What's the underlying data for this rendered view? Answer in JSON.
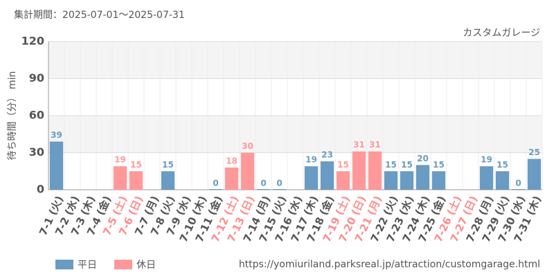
{
  "chart_data": {
    "type": "bar",
    "title": "カスタムガレージ",
    "subtitle": "集計期間：2025-07-01～2025-07-31",
    "y_label": "待ち時間（分） min",
    "source": "https://yomiuriland.parksreal.jp/attraction/customgarage.html",
    "categories": [
      "7-1 (火)",
      "7-2 (水)",
      "7-3 (木)",
      "7-4 (金)",
      "7-5 (土)",
      "7-6 (日)",
      "7-7 (月)",
      "7-8 (火)",
      "7-9 (水)",
      "7-10 (木)",
      "7-11 (金)",
      "7-12 (土)",
      "7-13 (日)",
      "7-14 (月)",
      "7-15 (火)",
      "7-16 (水)",
      "7-17 (木)",
      "7-18 (金)",
      "7-19 (土)",
      "7-20 (日)",
      "7-21 (月)",
      "7-22 (火)",
      "7-23 (水)",
      "7-24 (木)",
      "7-25 (金)",
      "7-26 (土)",
      "7-27 (日)",
      "7-28 (月)",
      "7-29 (火)",
      "7-30 (水)",
      "7-31 (木)"
    ],
    "category_colors": [
      "#555",
      "#555",
      "#555",
      "#555",
      "#ff8c8c",
      "#ff8c8c",
      "#555",
      "#555",
      "#555",
      "#555",
      "#555",
      "#ff8c8c",
      "#ff8c8c",
      "#555",
      "#555",
      "#555",
      "#555",
      "#555",
      "#ff8c8c",
      "#ff8c8c",
      "#ff8c8c",
      "#555",
      "#555",
      "#555",
      "#555",
      "#ff8c8c",
      "#ff8c8c",
      "#555",
      "#555",
      "#555",
      "#555"
    ],
    "series": [
      {
        "name": "平日",
        "color": "#6a9bc3",
        "values": [
          39,
          null,
          null,
          null,
          null,
          null,
          null,
          15,
          null,
          null,
          0,
          null,
          null,
          0,
          0,
          null,
          19,
          23,
          null,
          null,
          null,
          15,
          15,
          20,
          15,
          null,
          null,
          19,
          15,
          0,
          25
        ]
      },
      {
        "name": "休日",
        "color": "#ff9999",
        "values": [
          null,
          null,
          null,
          null,
          19,
          15,
          null,
          null,
          null,
          null,
          null,
          18,
          30,
          null,
          null,
          null,
          null,
          null,
          15,
          31,
          31,
          null,
          null,
          null,
          null,
          null,
          null,
          null,
          null,
          null,
          null
        ]
      }
    ],
    "ylim": [
      0,
      120
    ],
    "yticks": [
      0,
      30,
      60,
      90,
      120
    ],
    "grid": true
  }
}
